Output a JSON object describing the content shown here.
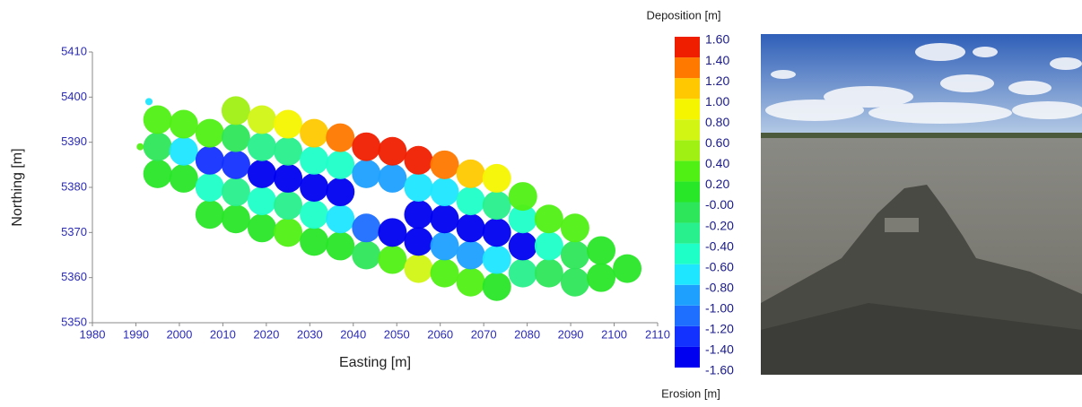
{
  "chart_data": {
    "type": "scatter",
    "x_label": "Easting  [m]",
    "y_label": "Northing  [m]",
    "xlim": [
      1980,
      2110
    ],
    "ylim": [
      5350,
      5410
    ],
    "xticks": [
      1980,
      1990,
      2000,
      2010,
      2020,
      2030,
      2040,
      2050,
      2060,
      2070,
      2080,
      2090,
      2100,
      2110
    ],
    "yticks": [
      5350,
      5360,
      5370,
      5380,
      5390,
      5400,
      5410
    ],
    "x": [
      1993,
      1991,
      1995,
      1995,
      1995,
      2001,
      2001,
      2001,
      2007,
      2007,
      2007,
      2007,
      2013,
      2013,
      2013,
      2013,
      2013,
      2019,
      2019,
      2019,
      2019,
      2019,
      2025,
      2025,
      2025,
      2025,
      2025,
      2031,
      2031,
      2031,
      2031,
      2031,
      2037,
      2037,
      2037,
      2037,
      2037,
      2043,
      2043,
      2043,
      2043,
      2049,
      2049,
      2049,
      2049,
      2055,
      2055,
      2055,
      2055,
      2055,
      2061,
      2061,
      2061,
      2061,
      2061,
      2067,
      2067,
      2067,
      2067,
      2067,
      2073,
      2073,
      2073,
      2073,
      2073,
      2079,
      2079,
      2079,
      2079,
      2085,
      2085,
      2085,
      2091,
      2091,
      2091,
      2097,
      2097,
      2103
    ],
    "y": [
      5399,
      5389,
      5383,
      5389,
      5395,
      5382,
      5388,
      5394,
      5374,
      5380,
      5386,
      5392,
      5373,
      5379,
      5385,
      5391,
      5397,
      5371,
      5377,
      5383,
      5389,
      5395,
      5370,
      5376,
      5382,
      5388,
      5394,
      5368,
      5374,
      5380,
      5386,
      5392,
      5367,
      5373,
      5379,
      5385,
      5391,
      5365,
      5371,
      5383,
      5389,
      5364,
      5370,
      5382,
      5388,
      5362,
      5368,
      5374,
      5380,
      5386,
      5361,
      5367,
      5373,
      5379,
      5385,
      5359,
      5365,
      5371,
      5377,
      5383,
      5358,
      5364,
      5370,
      5376,
      5382,
      5361,
      5367,
      5373,
      5378,
      5361,
      5367,
      5373,
      5359,
      5365,
      5371,
      5360,
      5366,
      5362
    ],
    "values": [
      -0.7,
      0.3,
      0.1,
      -0.1,
      0.3,
      0.1,
      -0.7,
      0.3,
      0.1,
      -0.5,
      -1.3,
      0.3,
      0.1,
      -0.3,
      -1.3,
      -0.1,
      0.5,
      0.1,
      -0.5,
      -1.5,
      -0.3,
      0.7,
      0.3,
      -0.3,
      -1.5,
      -0.3,
      0.9,
      0.1,
      -0.5,
      -1.5,
      -0.5,
      1.1,
      0.1,
      -0.7,
      -1.5,
      -0.5,
      1.3,
      -0.1,
      -1.1,
      -0.9,
      1.5,
      0.3,
      -1.5,
      -0.9,
      1.5,
      0.7,
      -1.5,
      -1.5,
      -0.7,
      1.5,
      0.3,
      -0.9,
      -1.5,
      -0.7,
      1.3,
      0.3,
      -0.9,
      -1.5,
      -0.5,
      1.1,
      0.1,
      -0.7,
      -1.5,
      -0.3,
      0.9,
      -0.3,
      -1.5,
      -0.5,
      0.3,
      -0.1,
      -0.5,
      0.3,
      -0.1,
      -0.1,
      0.3,
      0.1,
      0.1,
      0.1
    ],
    "colorbar": {
      "top_title": "Deposition [m]",
      "bottom_title": "Erosion [m]",
      "ticks": [
        {
          "value": -1.6,
          "label": "-1.60"
        },
        {
          "value": -1.4,
          "label": "-1.40"
        },
        {
          "value": -1.2,
          "label": "-1.20"
        },
        {
          "value": -1.0,
          "label": "-1.00"
        },
        {
          "value": -0.8,
          "label": "-0.80"
        },
        {
          "value": -0.6,
          "label": "-0.60"
        },
        {
          "value": -0.4,
          "label": "-0.40"
        },
        {
          "value": -0.2,
          "label": "-0.20"
        },
        {
          "value": 0,
          "label": "-0.00"
        },
        {
          "value": 0.2,
          "label": "0.20"
        },
        {
          "value": 0.4,
          "label": "0.40"
        },
        {
          "value": 0.6,
          "label": "0.60"
        },
        {
          "value": 0.8,
          "label": "0.80"
        },
        {
          "value": 1.0,
          "label": "1.00"
        },
        {
          "value": 1.2,
          "label": "1.20"
        },
        {
          "value": 1.4,
          "label": "1.40"
        },
        {
          "value": 1.6,
          "label": "1.60"
        }
      ],
      "colors": [
        "#0000f0",
        "#1432ff",
        "#1e6eff",
        "#1ea0ff",
        "#1ee6ff",
        "#1effc8",
        "#28f08c",
        "#2ee65a",
        "#28e628",
        "#50f014",
        "#a0f014",
        "#d2f514",
        "#f5f500",
        "#ffc800",
        "#ff7800",
        "#f01e00"
      ]
    }
  }
}
